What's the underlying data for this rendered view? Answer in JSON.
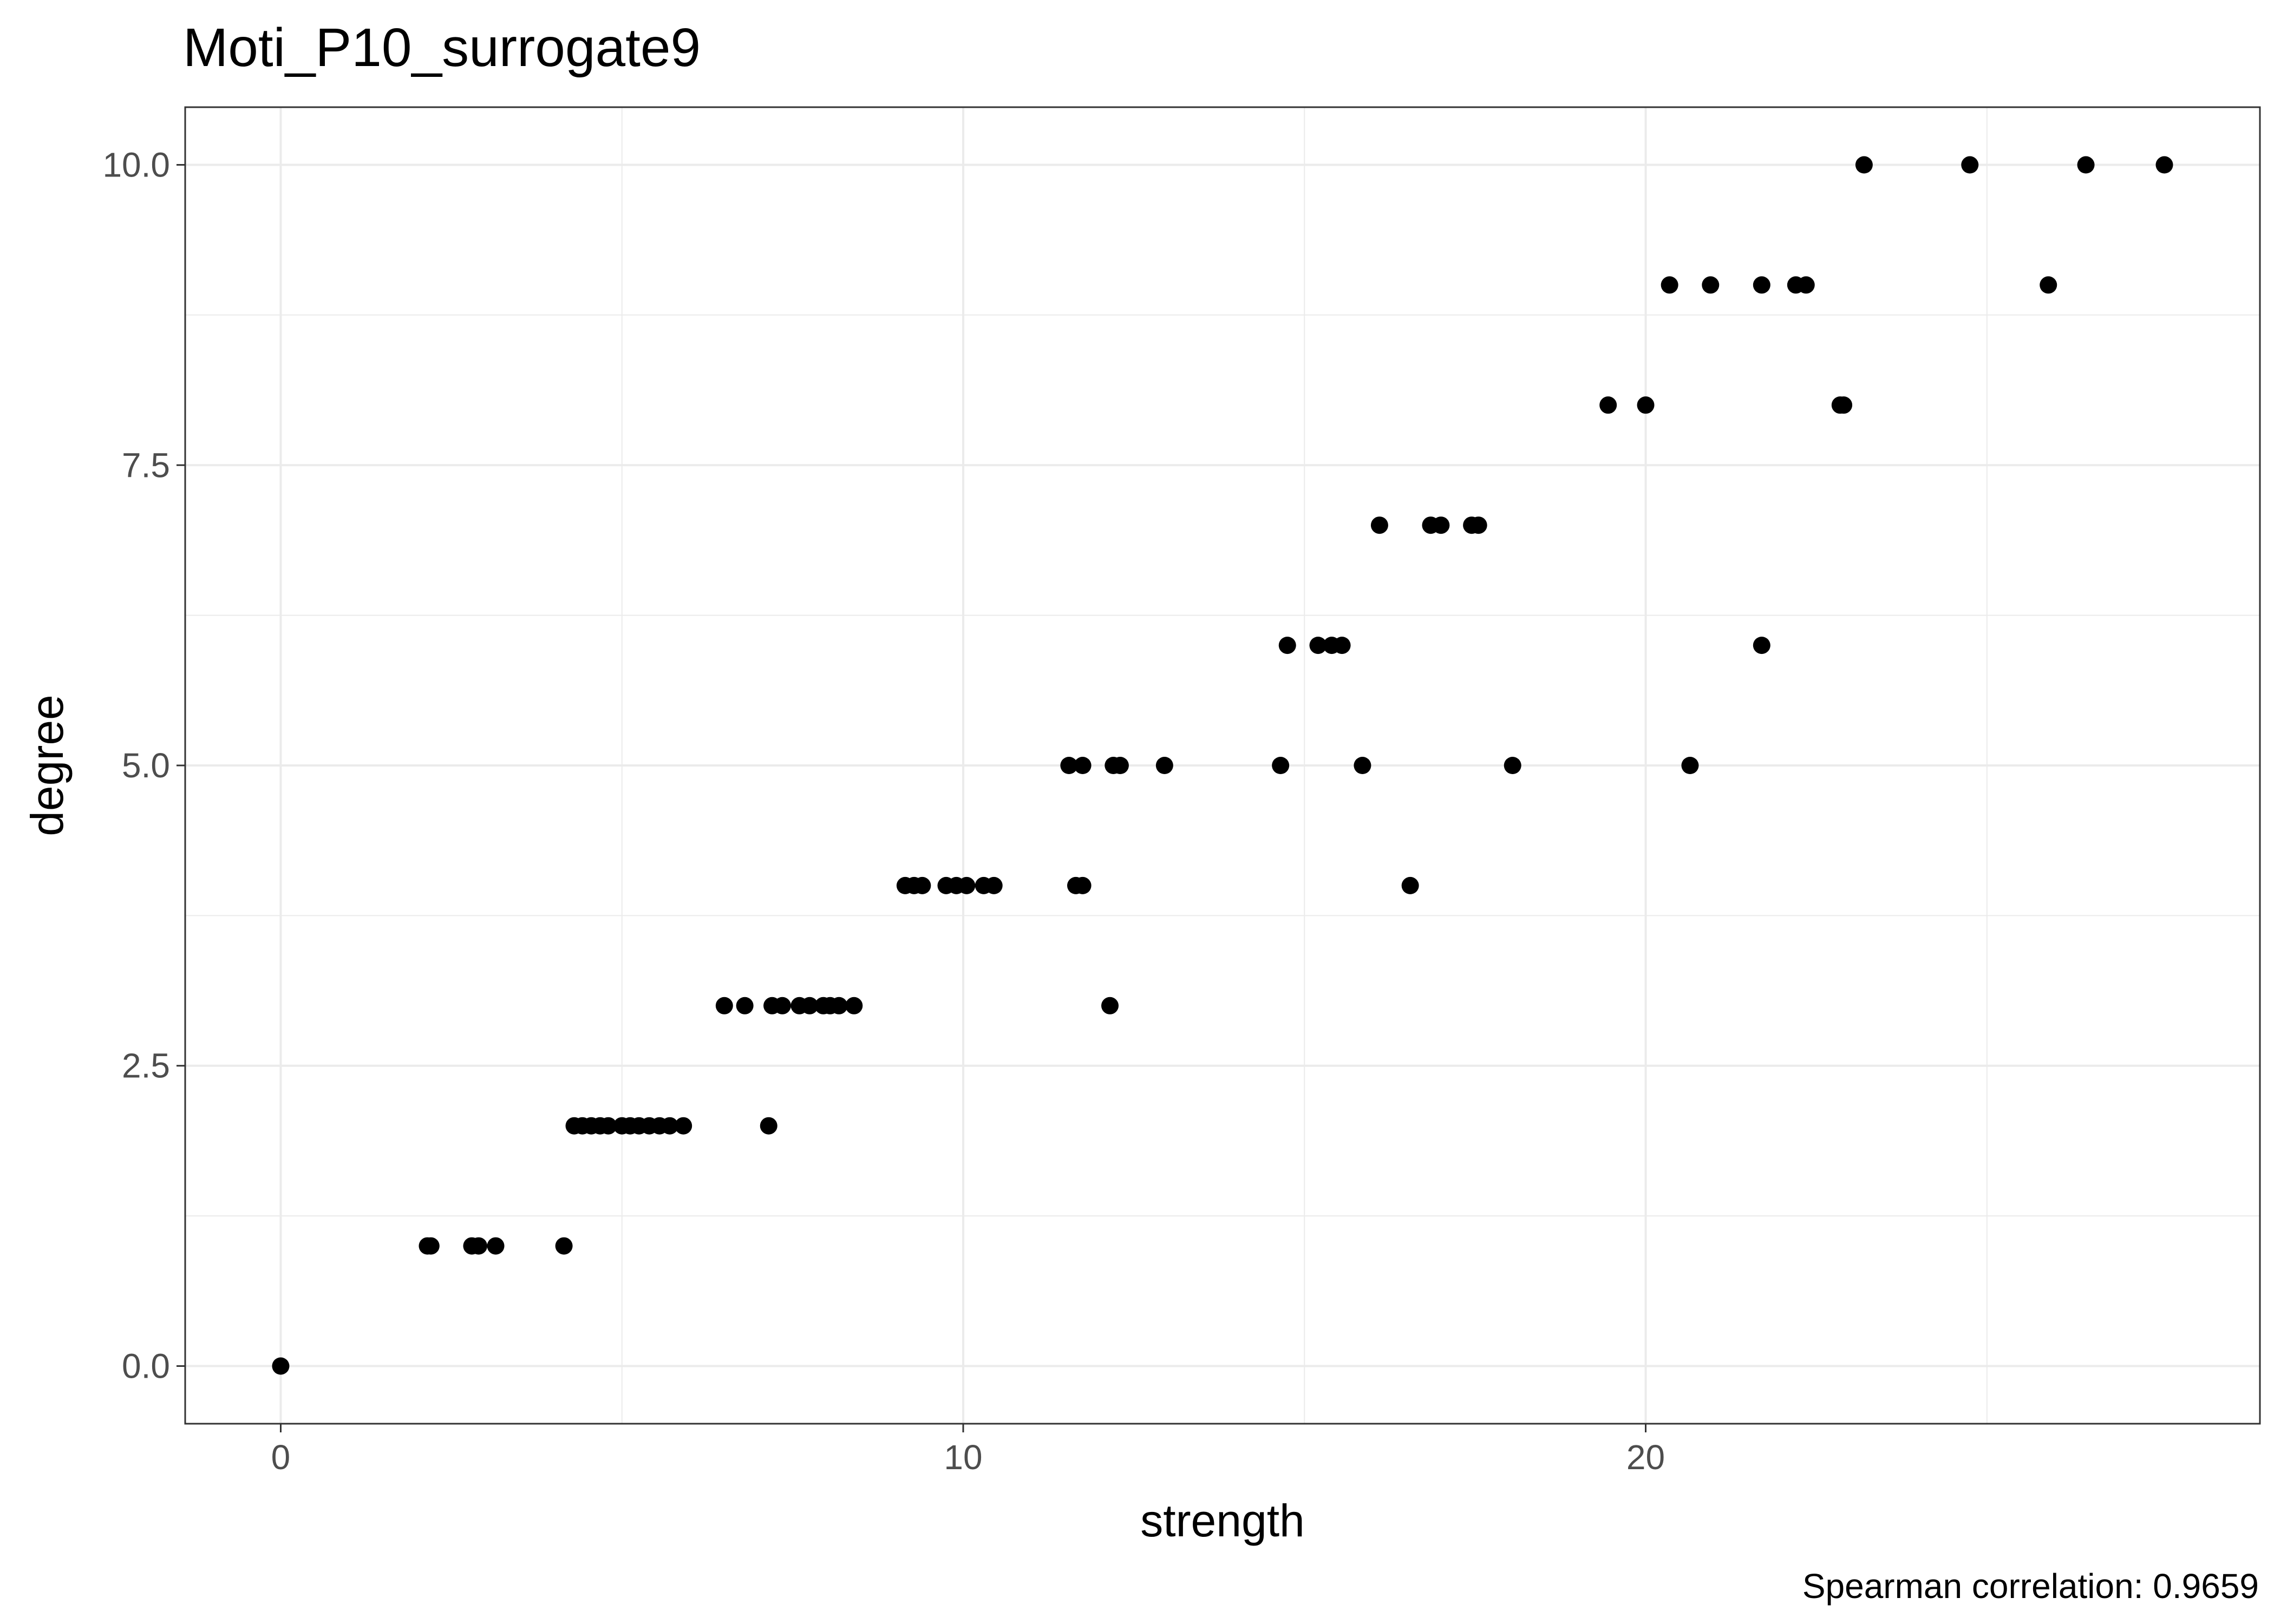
{
  "chart_data": {
    "type": "scatter",
    "title": "Moti_P10_surrogate9",
    "xlabel": "strength",
    "ylabel": "degree",
    "caption": "Spearman correlation: 0.9659",
    "xlim": [
      -1.4,
      29.0
    ],
    "ylim": [
      -0.48,
      10.48
    ],
    "x_ticks": [
      0,
      10,
      20
    ],
    "x_tick_labels": [
      "0",
      "10",
      "20"
    ],
    "y_ticks": [
      0,
      2.5,
      5,
      7.5,
      10
    ],
    "y_tick_labels": [
      "0.0",
      "2.5",
      "5.0",
      "7.5",
      "10.0"
    ],
    "grid": true,
    "point_color": "#000000",
    "points": [
      {
        "x": 0.0,
        "y": 0
      },
      {
        "x": 2.15,
        "y": 1
      },
      {
        "x": 2.2,
        "y": 1
      },
      {
        "x": 2.8,
        "y": 1
      },
      {
        "x": 2.9,
        "y": 1
      },
      {
        "x": 3.15,
        "y": 1
      },
      {
        "x": 4.15,
        "y": 1
      },
      {
        "x": 4.3,
        "y": 2
      },
      {
        "x": 4.42,
        "y": 2
      },
      {
        "x": 4.55,
        "y": 2
      },
      {
        "x": 4.68,
        "y": 2
      },
      {
        "x": 4.8,
        "y": 2
      },
      {
        "x": 5.0,
        "y": 2
      },
      {
        "x": 5.12,
        "y": 2
      },
      {
        "x": 5.25,
        "y": 2
      },
      {
        "x": 5.4,
        "y": 2
      },
      {
        "x": 5.55,
        "y": 2
      },
      {
        "x": 5.7,
        "y": 2
      },
      {
        "x": 5.9,
        "y": 2
      },
      {
        "x": 7.15,
        "y": 2
      },
      {
        "x": 6.5,
        "y": 3
      },
      {
        "x": 6.8,
        "y": 3
      },
      {
        "x": 7.2,
        "y": 3
      },
      {
        "x": 7.35,
        "y": 3
      },
      {
        "x": 7.6,
        "y": 3
      },
      {
        "x": 7.75,
        "y": 3
      },
      {
        "x": 7.95,
        "y": 3
      },
      {
        "x": 8.05,
        "y": 3
      },
      {
        "x": 8.18,
        "y": 3
      },
      {
        "x": 8.4,
        "y": 3
      },
      {
        "x": 12.15,
        "y": 3
      },
      {
        "x": 9.15,
        "y": 4
      },
      {
        "x": 9.28,
        "y": 4
      },
      {
        "x": 9.4,
        "y": 4
      },
      {
        "x": 9.75,
        "y": 4
      },
      {
        "x": 9.9,
        "y": 4
      },
      {
        "x": 10.05,
        "y": 4
      },
      {
        "x": 10.3,
        "y": 4
      },
      {
        "x": 10.45,
        "y": 4
      },
      {
        "x": 11.65,
        "y": 4
      },
      {
        "x": 11.75,
        "y": 4
      },
      {
        "x": 16.55,
        "y": 4
      },
      {
        "x": 11.55,
        "y": 5
      },
      {
        "x": 11.75,
        "y": 5
      },
      {
        "x": 12.2,
        "y": 5
      },
      {
        "x": 12.3,
        "y": 5
      },
      {
        "x": 12.95,
        "y": 5
      },
      {
        "x": 14.65,
        "y": 5
      },
      {
        "x": 15.85,
        "y": 5
      },
      {
        "x": 18.05,
        "y": 5
      },
      {
        "x": 20.65,
        "y": 5
      },
      {
        "x": 14.75,
        "y": 6
      },
      {
        "x": 15.2,
        "y": 6
      },
      {
        "x": 15.4,
        "y": 6
      },
      {
        "x": 15.55,
        "y": 6
      },
      {
        "x": 21.7,
        "y": 6
      },
      {
        "x": 16.1,
        "y": 7
      },
      {
        "x": 16.85,
        "y": 7
      },
      {
        "x": 17.0,
        "y": 7
      },
      {
        "x": 17.45,
        "y": 7
      },
      {
        "x": 17.55,
        "y": 7
      },
      {
        "x": 19.45,
        "y": 8
      },
      {
        "x": 20.0,
        "y": 8
      },
      {
        "x": 22.85,
        "y": 8
      },
      {
        "x": 22.9,
        "y": 8
      },
      {
        "x": 20.35,
        "y": 9
      },
      {
        "x": 20.95,
        "y": 9
      },
      {
        "x": 21.7,
        "y": 9
      },
      {
        "x": 22.2,
        "y": 9
      },
      {
        "x": 22.35,
        "y": 9
      },
      {
        "x": 25.9,
        "y": 9
      },
      {
        "x": 23.2,
        "y": 10
      },
      {
        "x": 24.75,
        "y": 10
      },
      {
        "x": 26.45,
        "y": 10
      },
      {
        "x": 27.6,
        "y": 10
      }
    ]
  }
}
